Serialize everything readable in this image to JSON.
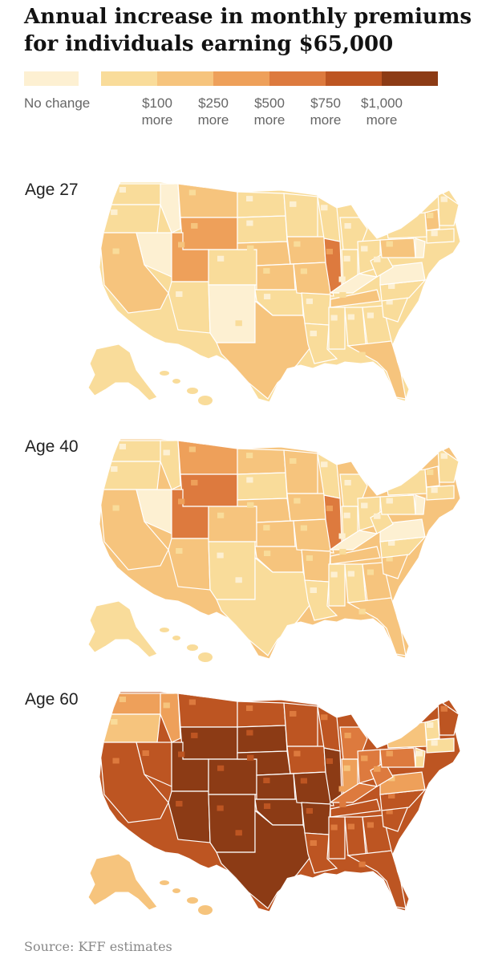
{
  "title": {
    "line1": "Annual increase in monthly premiums",
    "line2": "for individuals earning $65,000"
  },
  "legend": {
    "no_change": {
      "label": "No change",
      "color": "#fdf0d2"
    },
    "bins": [
      {
        "amount": "$100",
        "unit": "more",
        "color": "#f9dc9a"
      },
      {
        "amount": "$250",
        "unit": "more",
        "color": "#f6c47d"
      },
      {
        "amount": "$500",
        "unit": "more",
        "color": "#eea05a"
      },
      {
        "amount": "$750",
        "unit": "more",
        "color": "#dd7a3e"
      },
      {
        "amount": "$1,000",
        "unit": "more",
        "color": "#bd5522"
      },
      {
        "amount": "",
        "unit": "",
        "color": "#8c3b15"
      }
    ]
  },
  "maps": [
    {
      "label": "Age 27",
      "base_level": 1,
      "palette_bias": "light"
    },
    {
      "label": "Age 40",
      "base_level": 2,
      "palette_bias": "medium"
    },
    {
      "label": "Age 60",
      "base_level": 5,
      "palette_bias": "dark"
    }
  ],
  "colors": {
    "level0": "#fdf0d2",
    "level1": "#f9dc9a",
    "level2": "#f6c47d",
    "level3": "#eea05a",
    "level4": "#dd7a3e",
    "level5": "#bd5522",
    "level6": "#8c3b15",
    "border": "#ffffff"
  },
  "source": "Source: KFF estimates"
}
